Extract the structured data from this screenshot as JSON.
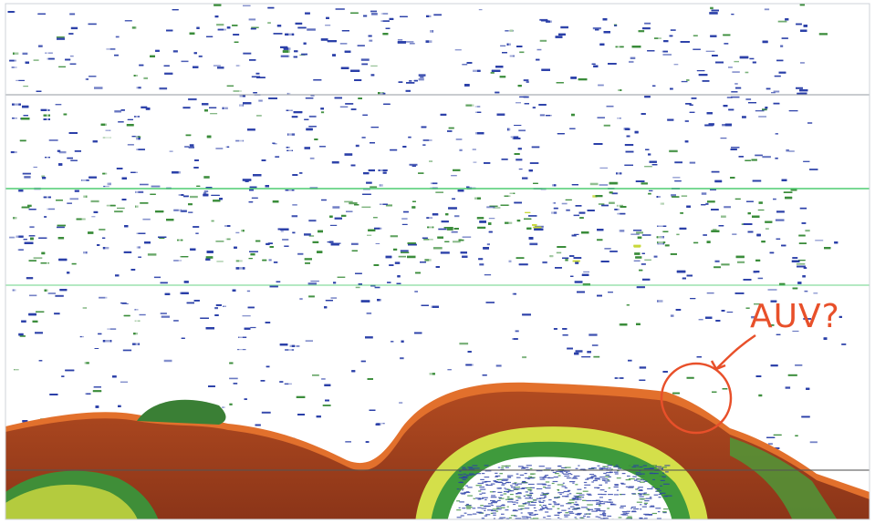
{
  "image": {
    "kind": "echosounder echogram",
    "colors": {
      "weak_echo": "#2a3fa8",
      "medium_echo": "#3a8c3a",
      "strong_echo": "#c8d83a",
      "seabed": "#9a3a1c",
      "seabed_halo": "#e06a2a",
      "background": "#ffffff",
      "annotation": "#e8502a",
      "reference_line": "#5ad07a"
    }
  },
  "annotation": {
    "label": "AUV?",
    "marker": "circle-with-leader-arrow"
  }
}
